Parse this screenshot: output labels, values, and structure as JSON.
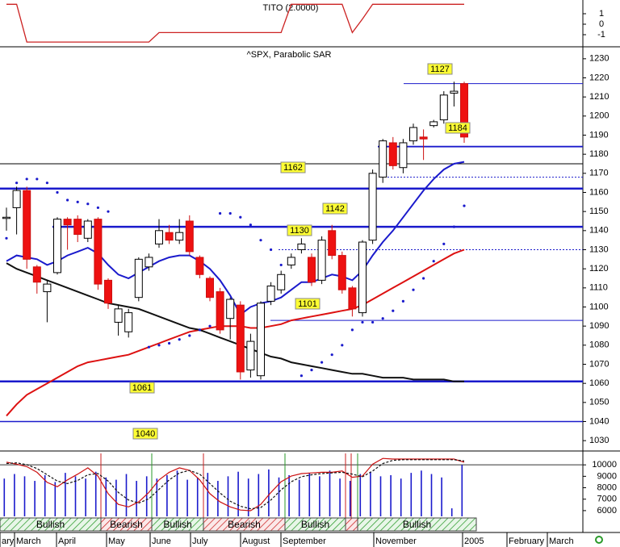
{
  "chart_data": [
    {
      "type": "line",
      "title": "TITO (2.0000)",
      "series": [
        {
          "color": "#cc2222",
          "values": [
            1.9,
            1.9,
            -1.7,
            -1.7,
            -1.7,
            -1.7,
            -1.7,
            -1.7,
            -1.7,
            -1.7,
            -1.7,
            -1.7,
            -1.7,
            -1.7,
            -1.7,
            -0.8,
            -0.8,
            -0.8,
            -0.8,
            -0.8,
            -0.8,
            -0.8,
            -0.8,
            -0.8,
            -0.8,
            -0.8,
            -0.8,
            -0.8,
            1.9,
            1.9,
            1.9,
            1.9,
            1.9,
            1.9,
            -0.8,
            0.5,
            1.9,
            1.9,
            1.9,
            1.9,
            1.9,
            1.9,
            1.9,
            1.9,
            1.9,
            1.9
          ]
        }
      ],
      "ylim": [
        -2,
        2
      ],
      "yticks": [
        1,
        0,
        -1
      ]
    },
    {
      "type": "candlestick",
      "title": "^SPX, Parabolic SAR",
      "open": [
        1147,
        1152,
        1161,
        1121,
        1108,
        1118,
        1146,
        1146,
        1136,
        1146,
        1114,
        1092,
        1087,
        1105,
        1121,
        1133,
        1139,
        1135,
        1145,
        1126,
        1115,
        1108,
        1094,
        1101,
        1067,
        1064,
        1103,
        1109,
        1122,
        1130,
        1126,
        1114,
        1140,
        1127,
        1110,
        1097,
        1135,
        1168,
        1186,
        1173,
        1187,
        1189,
        1195,
        1198,
        1212,
        1217
      ],
      "high": [
        1152,
        1163,
        1163,
        1122,
        1114,
        1147,
        1147,
        1148,
        1146,
        1147,
        1115,
        1101,
        1099,
        1126,
        1128,
        1146,
        1143,
        1146,
        1148,
        1127,
        1116,
        1110,
        1105,
        1103,
        1086,
        1103,
        1113,
        1119,
        1128,
        1136,
        1128,
        1137,
        1143,
        1129,
        1111,
        1135,
        1172,
        1188,
        1189,
        1188,
        1196,
        1193,
        1198,
        1213,
        1218,
        1218
      ],
      "low": [
        1140,
        1138,
        1120,
        1107,
        1092,
        1117,
        1130,
        1134,
        1134,
        1109,
        1099,
        1085,
        1084,
        1103,
        1119,
        1131,
        1133,
        1133,
        1127,
        1115,
        1103,
        1086,
        1083,
        1062,
        1063,
        1062,
        1101,
        1107,
        1120,
        1128,
        1111,
        1112,
        1125,
        1107,
        1095,
        1095,
        1133,
        1165,
        1172,
        1170,
        1185,
        1177,
        1194,
        1196,
        1205,
        1186
      ],
      "close": [
        1147,
        1161,
        1125,
        1113,
        1112,
        1146,
        1143,
        1138,
        1145,
        1112,
        1102,
        1099,
        1097,
        1125,
        1126,
        1140,
        1135,
        1139,
        1129,
        1117,
        1105,
        1088,
        1104,
        1066,
        1082,
        1102,
        1111,
        1117,
        1126,
        1133,
        1113,
        1135,
        1127,
        1109,
        1099,
        1134,
        1170,
        1187,
        1174,
        1186,
        1194,
        1188,
        1197,
        1211,
        1213,
        1189
      ],
      "up_color": "#ffffff",
      "down_color": "#ee1111",
      "lines": [
        {
          "color": "#1a1acc",
          "values": [
            1124,
            1127,
            1126,
            1125,
            1122,
            1124,
            1127,
            1129,
            1131,
            1128,
            1122,
            1117,
            1115,
            1118,
            1121,
            1124,
            1126,
            1127,
            1127,
            1124,
            1120,
            1114,
            1106,
            1096,
            1100,
            1102,
            1103,
            1105,
            1109,
            1113,
            1113,
            1115,
            1117,
            1116,
            1114,
            1119,
            1127,
            1134,
            1140,
            1147,
            1154,
            1161,
            1167,
            1172,
            1175,
            1176
          ]
        },
        {
          "color": "#dd1111",
          "values": [
            1043,
            1049,
            1054,
            1057,
            1060,
            1063,
            1066,
            1069,
            1071,
            1072,
            1073,
            1074,
            1075,
            1077,
            1079,
            1081,
            1083,
            1085,
            1087,
            1088,
            1089,
            1090,
            1090,
            1090,
            1089,
            1089,
            1090,
            1091,
            1093,
            1094,
            1095,
            1096,
            1097,
            1098,
            1099,
            1101,
            1104,
            1107,
            1110,
            1113,
            1116,
            1119,
            1122,
            1125,
            1128,
            1130
          ]
        },
        {
          "color": "#111111",
          "values": [
            1123,
            1120,
            1118,
            1116,
            1114,
            1112,
            1110,
            1108,
            1106,
            1104,
            1102,
            1101,
            1100,
            1099,
            1097,
            1095,
            1093,
            1091,
            1089,
            1088,
            1086,
            1084,
            1082,
            1080,
            1078,
            1076,
            1074,
            1073,
            1071,
            1070,
            1069,
            1068,
            1067,
            1066,
            1065,
            1065,
            1064,
            1063,
            1063,
            1063,
            1062,
            1062,
            1062,
            1062,
            1061,
            1061
          ]
        }
      ],
      "sar": {
        "color": "#1a1acc",
        "values": [
          1136,
          1165,
          1167,
          1167,
          1165,
          1160,
          1156,
          1155,
          1154,
          1152,
          1150,
          null,
          null,
          null,
          1079,
          1080,
          1081,
          1083,
          1085,
          1088,
          1090,
          1149,
          1149,
          1147,
          1143,
          1135,
          1130,
          1122,
          null,
          1064,
          1067,
          1071,
          1075,
          1080,
          1088,
          1092,
          1092,
          1094,
          1098,
          1103,
          1109,
          1115,
          1124,
          1133,
          1142,
          1153
        ]
      },
      "levels": [
        1217,
        1184,
        1175,
        1168,
        1162,
        1142,
        1130,
        1093,
        1061,
        1040
      ],
      "level_labels": [
        "1127",
        "1184",
        "1162",
        "1142",
        "1130",
        "1101",
        "1061",
        "1040"
      ],
      "ylim": [
        1025,
        1235
      ],
      "yticks": [
        1030,
        1040,
        1050,
        1060,
        1070,
        1080,
        1090,
        1100,
        1110,
        1120,
        1130,
        1140,
        1150,
        1160,
        1170,
        1180,
        1190,
        1200,
        1210,
        1220,
        1230
      ]
    },
    {
      "type": "volume",
      "series": [
        {
          "color": "#1a1acc",
          "values": [
            8800,
            9200,
            9000,
            8600,
            9100,
            8500,
            9300,
            9000,
            8800,
            9400,
            8900,
            8700,
            9200,
            8600,
            9000,
            8800,
            9100,
            9500,
            8700,
            8900,
            9300,
            8600,
            9000,
            9400,
            8800,
            9200,
            9600,
            8900,
            9100,
            8700,
            9300,
            9000,
            9500,
            8800,
            8600,
            9200,
            9400,
            9000,
            9100,
            8800,
            9300,
            9500,
            9200,
            8900,
            6200,
            10000
          ]
        }
      ],
      "stoch": [
        {
          "color": "#cc1111",
          "axis": "y2",
          "values": [
            86,
            83,
            79,
            70,
            54,
            47,
            58,
            67,
            77,
            64,
            36,
            19,
            15,
            23,
            38,
            58,
            70,
            77,
            73,
            58,
            36,
            23,
            15,
            10,
            9,
            19,
            38,
            55,
            64,
            68,
            69,
            70,
            70,
            72,
            62,
            64,
            83,
            92,
            91,
            91,
            91,
            91,
            91,
            91,
            91,
            86
          ]
        },
        {
          "color": "#111111",
          "axis": "y2",
          "values": [
            84,
            85,
            82,
            76,
            66,
            56,
            52,
            57,
            66,
            68,
            56,
            38,
            26,
            21,
            28,
            43,
            58,
            69,
            73,
            67,
            52,
            37,
            24,
            16,
            12,
            14,
            26,
            42,
            55,
            63,
            66,
            68,
            69,
            70,
            67,
            63,
            72,
            84,
            89,
            90,
            90,
            90,
            90,
            90,
            90,
            88
          ]
        }
      ],
      "ylim": [
        5500,
        11000
      ],
      "yticks": [
        10000,
        9000,
        8000,
        7000,
        6000
      ],
      "y2lim": [
        0,
        100
      ],
      "phases": [
        "Bullish",
        "Bearish",
        "Bullish",
        "Bearish",
        "Bullish",
        null,
        "Bullish"
      ],
      "phase_colors": [
        "#2a9a2a",
        "#cc2222",
        "#2a9a2a",
        "#cc2222",
        "#2a9a2a",
        "#cc2222",
        "#2a9a2a"
      ],
      "x_labels": [
        "ary",
        "March",
        "April",
        "May",
        "June",
        "July",
        "August",
        "September",
        "November",
        "2005",
        "February",
        "March"
      ]
    }
  ]
}
